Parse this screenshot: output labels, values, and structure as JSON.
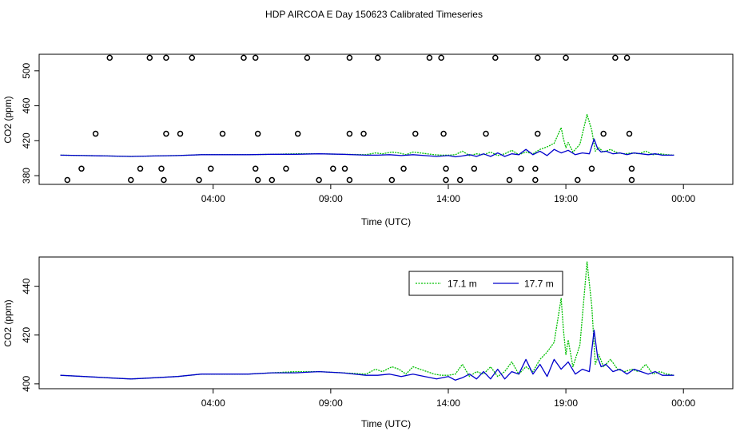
{
  "title": "HDP AIRCOA E  Day 150623  Calibrated Timeseries",
  "chart_data": [
    {
      "type": "scatter",
      "panel": "top",
      "xlabel": "Time (UTC)",
      "ylabel": "CO2 (ppm)",
      "xlim": [
        -3.4,
        26.1
      ],
      "ylim": [
        370,
        519
      ],
      "x_ticks": [
        {
          "value": 4,
          "label": "04:00"
        },
        {
          "value": 9,
          "label": "09:00"
        },
        {
          "value": 14,
          "label": "14:00"
        },
        {
          "value": 19,
          "label": "19:00"
        },
        {
          "value": 24,
          "label": "00:00"
        }
      ],
      "y_ticks": [
        {
          "value": 380,
          "label": "380"
        },
        {
          "value": 420,
          "label": "420"
        },
        {
          "value": 460,
          "label": "460"
        },
        {
          "value": 500,
          "label": "500"
        }
      ],
      "grid": false,
      "calibration_points": [
        [
          -2.2,
          375
        ],
        [
          -1.6,
          388
        ],
        [
          -1.0,
          428
        ],
        [
          -0.4,
          515
        ],
        [
          0.5,
          375
        ],
        [
          0.9,
          388
        ],
        [
          1.3,
          515
        ],
        [
          1.8,
          388
        ],
        [
          1.9,
          375
        ],
        [
          2.0,
          428
        ],
        [
          2.0,
          515
        ],
        [
          2.6,
          428
        ],
        [
          3.1,
          515
        ],
        [
          3.4,
          375
        ],
        [
          3.9,
          388
        ],
        [
          4.4,
          428
        ],
        [
          5.3,
          515
        ],
        [
          5.8,
          388
        ],
        [
          5.8,
          515
        ],
        [
          5.9,
          428
        ],
        [
          5.9,
          375
        ],
        [
          6.5,
          375
        ],
        [
          7.1,
          388
        ],
        [
          7.6,
          428
        ],
        [
          8.0,
          515
        ],
        [
          8.5,
          375
        ],
        [
          9.1,
          388
        ],
        [
          9.6,
          388
        ],
        [
          9.8,
          428
        ],
        [
          9.8,
          515
        ],
        [
          9.8,
          375
        ],
        [
          10.4,
          428
        ],
        [
          11.0,
          515
        ],
        [
          11.6,
          375
        ],
        [
          12.1,
          388
        ],
        [
          12.6,
          428
        ],
        [
          13.2,
          515
        ],
        [
          13.7,
          515
        ],
        [
          13.8,
          428
        ],
        [
          13.9,
          388
        ],
        [
          13.9,
          375
        ],
        [
          14.5,
          375
        ],
        [
          15.1,
          388
        ],
        [
          15.6,
          428
        ],
        [
          16.0,
          515
        ],
        [
          16.6,
          375
        ],
        [
          17.1,
          388
        ],
        [
          17.7,
          388
        ],
        [
          17.7,
          375
        ],
        [
          17.8,
          428
        ],
        [
          17.8,
          515
        ],
        [
          19.0,
          515
        ],
        [
          19.5,
          375
        ],
        [
          20.1,
          388
        ],
        [
          20.6,
          428
        ],
        [
          21.1,
          515
        ],
        [
          21.6,
          515
        ],
        [
          21.7,
          428
        ],
        [
          21.8,
          388
        ],
        [
          21.8,
          375
        ]
      ],
      "series": [
        {
          "name": "17.1 m",
          "color": "#00c000",
          "x": [
            -2.5,
            -1.5,
            -0.5,
            0.5,
            1.5,
            2.5,
            3.5,
            4.5,
            5.5,
            6.5,
            7.5,
            8.5,
            9.5,
            10.5,
            10.9,
            11.2,
            11.6,
            11.9,
            12.2,
            12.5,
            12.8,
            13.1,
            13.4,
            13.7,
            14.0,
            14.3,
            14.6,
            14.9,
            15.2,
            15.5,
            15.8,
            16.1,
            16.4,
            16.7,
            17.0,
            17.3,
            17.6,
            17.9,
            18.2,
            18.5,
            18.8,
            18.9,
            19.0,
            19.1,
            19.3,
            19.6,
            19.9,
            20.1,
            20.25,
            20.4,
            20.6,
            20.9,
            21.2,
            21.5,
            21.8,
            22.1,
            22.4,
            22.7,
            23.0,
            23.3,
            23.6
          ],
          "y": [
            403.5,
            403,
            402.5,
            402,
            402.5,
            403,
            404,
            404,
            404,
            404.5,
            405,
            405,
            404.5,
            404,
            406,
            405,
            407,
            406,
            404,
            407,
            406,
            405,
            404,
            403.5,
            403.5,
            404,
            408,
            403,
            405,
            404,
            407,
            403,
            405,
            409,
            404,
            407,
            405,
            410,
            413,
            417,
            435,
            422,
            412,
            418,
            407,
            416,
            450,
            432,
            408,
            412,
            407,
            410,
            406,
            405,
            406,
            405,
            408,
            404,
            405,
            404,
            403.5
          ]
        },
        {
          "name": "17.7 m",
          "color": "#0000cc",
          "x": [
            -2.5,
            -1.5,
            -0.5,
            0.5,
            1.5,
            2.5,
            3.5,
            4.5,
            5.5,
            6.5,
            7.5,
            8.5,
            9.5,
            10.5,
            11.0,
            11.5,
            12.0,
            12.5,
            13.0,
            13.5,
            14.0,
            14.3,
            14.6,
            14.9,
            15.2,
            15.5,
            15.8,
            16.1,
            16.4,
            16.7,
            17.0,
            17.3,
            17.6,
            17.9,
            18.2,
            18.5,
            18.8,
            19.1,
            19.4,
            19.7,
            20.0,
            20.2,
            20.35,
            20.5,
            20.7,
            21.0,
            21.3,
            21.6,
            21.9,
            22.2,
            22.5,
            22.8,
            23.1,
            23.6
          ],
          "y": [
            403.5,
            403,
            402.5,
            402,
            402.5,
            403,
            404,
            404,
            404,
            404.5,
            404.5,
            405,
            404.5,
            403.5,
            403.5,
            404,
            403,
            404,
            403,
            402,
            403,
            401.5,
            402.5,
            404,
            402,
            405,
            402,
            406,
            402,
            405,
            404,
            410,
            404,
            408,
            403,
            410,
            406,
            409,
            404,
            406,
            405,
            422,
            411,
            407,
            408,
            405,
            406,
            404,
            406,
            405,
            404,
            405,
            403.5,
            403.5
          ]
        }
      ]
    },
    {
      "type": "line",
      "panel": "bottom",
      "xlabel": "Time (UTC)",
      "ylabel": "CO2 (ppm)",
      "xlim": [
        -3.4,
        26.1
      ],
      "ylim": [
        398,
        452
      ],
      "x_ticks": [
        {
          "value": 4,
          "label": "04:00"
        },
        {
          "value": 9,
          "label": "09:00"
        },
        {
          "value": 14,
          "label": "14:00"
        },
        {
          "value": 19,
          "label": "19:00"
        },
        {
          "value": 24,
          "label": "00:00"
        }
      ],
      "y_ticks": [
        {
          "value": 400,
          "label": "400"
        },
        {
          "value": 420,
          "label": "420"
        },
        {
          "value": 440,
          "label": "440"
        }
      ],
      "grid": false,
      "legend": {
        "placement": "top-center",
        "entries": [
          "17.1 m",
          "17.7 m"
        ]
      }
    }
  ]
}
